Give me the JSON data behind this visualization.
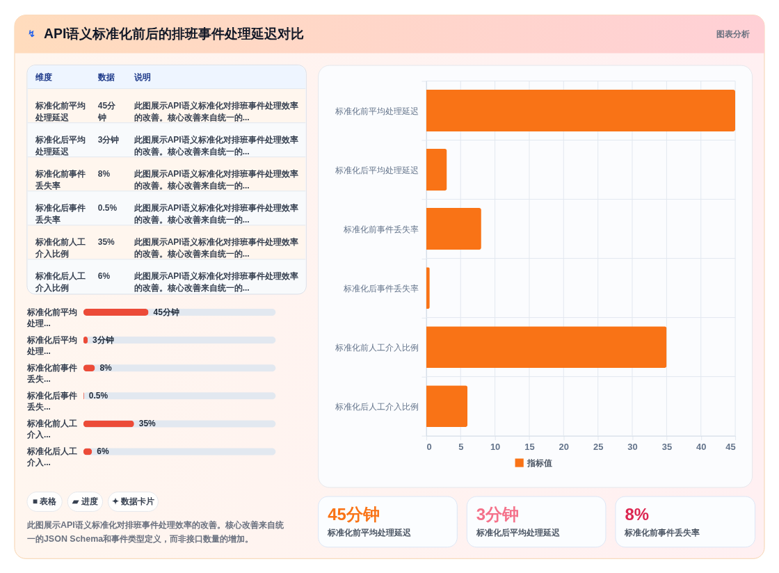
{
  "chart_data": [
    {
      "type": "other",
      "title": "API语义标准化前后的排班事件处理延迟对比",
      "annotations": [
        "↯",
        "图表分析"
      ]
    },
    {
      "type": "other",
      "annotations": [
        "维度",
        "数据",
        "说明",
        "标准化前平均处理延迟",
        "45分钟",
        "此图展示API语义标准化对排班事件处理效率的改善。核心改善来自统一的...",
        "标准化后平均处理延迟",
        "3分钟",
        "此图展示API语义标准化对排班事件处理效率的改善。核心改善来自统一的...",
        "标准化前事件丢失率",
        "8%",
        "此图展示API语义标准化对排班事件处理效率的改善。核心改善来自统一的...",
        "标准化后事件丢失率",
        "0.5%",
        "此图展示API语义标准化对排班事件处理效率的改善。核心改善来自统一的...",
        "标准化前人工介入比例",
        "35%",
        "此图展示API语义标准化对排班事件处理效率的改善。核心改善来自统一的...",
        "标准化后人工介入比例",
        "6%",
        "此图展示API语义标准化对排班事件处理效率的改善。核心改善来自统一的..."
      ]
    },
    {
      "type": "bar",
      "orientation": "horizontal",
      "categories": [
        "标准化前平均处理...",
        "标准化后平均处理...",
        "标准化前事件丢失...",
        "标准化后事件丢失...",
        "标准化前人工介入...",
        "标准化后人工介入..."
      ],
      "values": [
        45,
        3,
        8,
        0.5,
        35,
        6
      ],
      "value_labels": [
        "45分钟",
        "3分钟",
        "8%",
        "0.5%",
        "35%",
        "6%"
      ],
      "color": "#ec4b38"
    },
    {
      "type": "other",
      "annotations": [
        "■ 表格",
        "▰ 进度",
        "✦ 数据卡片"
      ]
    },
    {
      "type": "other",
      "annotations": [
        "此图展示API语义标准化对排班事件处理效率的改善。核心改善来自统一的JSON Schema和事件类型定义，而非接口数量的增加。"
      ]
    },
    {
      "type": "bar",
      "orientation": "horizontal",
      "categories": [
        "标准化前平均处理延迟",
        "标准化后平均处理延迟",
        "标准化前事件丢失率",
        "标准化后事件丢失率",
        "标准化前人工介入比例",
        "标准化后人工介入比例"
      ],
      "series": [
        {
          "name": "指标值",
          "color": "#f97316",
          "values": [
            45,
            3,
            8,
            0.5,
            35,
            6
          ]
        }
      ],
      "xlim": [
        0,
        45
      ],
      "xticks": [
        0,
        5,
        10,
        15,
        20,
        25,
        30,
        35,
        40,
        45
      ],
      "grid": true,
      "legend": "bottom"
    },
    {
      "type": "other",
      "annotations": [
        "45分钟",
        "标准化前平均处理延迟",
        "3分钟",
        "标准化后平均处理延迟",
        "8%",
        "标准化前事件丢失率"
      ],
      "colors": [
        "#f97316",
        "#f4718a",
        "#dc2651"
      ]
    }
  ]
}
